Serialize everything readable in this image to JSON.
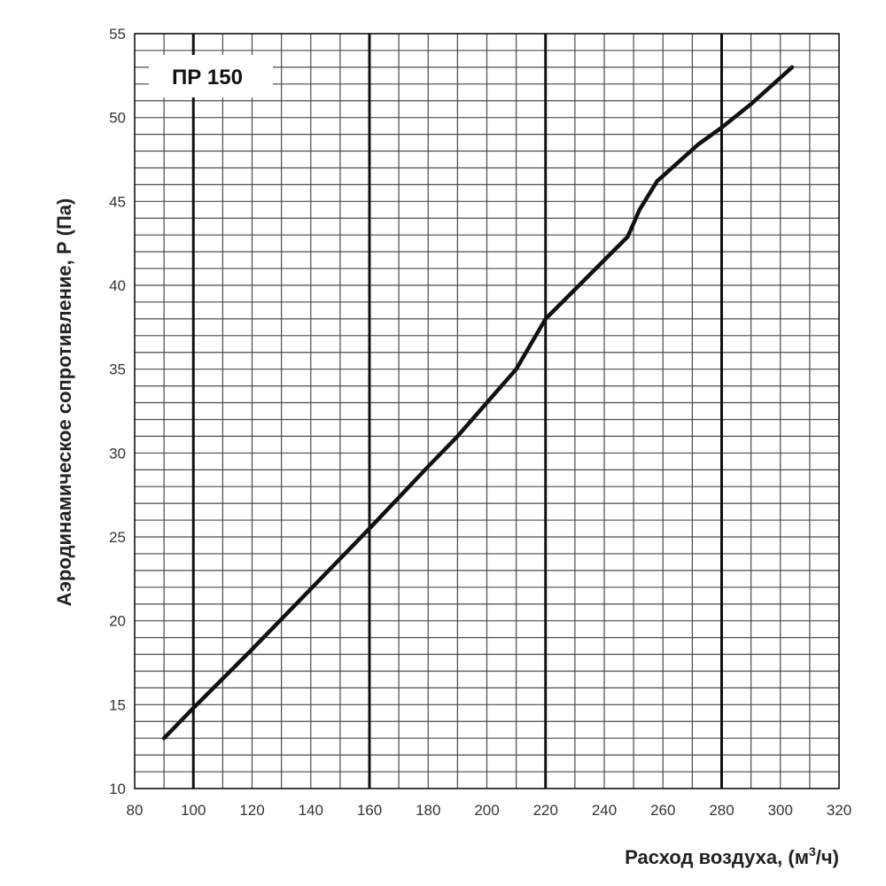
{
  "chart_data": {
    "type": "line",
    "label": "ПР 150",
    "xlabel_main": "Расход воздуха, (м",
    "xlabel_sup": "3",
    "xlabel_tail": "/ч)",
    "ylabel": "Аэродинамическое сопротивление, Р (Па)",
    "xlim": [
      80,
      320
    ],
    "ylim": [
      10,
      55
    ],
    "x_ticks": [
      80,
      100,
      120,
      140,
      160,
      180,
      200,
      220,
      240,
      260,
      280,
      300,
      320
    ],
    "y_ticks": [
      10,
      15,
      20,
      25,
      30,
      35,
      40,
      45,
      50,
      55
    ],
    "x_major_lines": [
      100,
      160,
      220,
      280
    ],
    "x_minor_step": 10,
    "y_minor_step": 1,
    "grid": true,
    "line_color": "#111111",
    "series": [
      {
        "x": [
          90,
          100,
          120,
          140,
          160,
          180,
          190,
          200,
          210,
          215,
          220,
          228,
          240,
          248,
          252,
          258,
          265,
          272,
          280,
          290,
          304
        ],
        "y": [
          13,
          14.8,
          18.3,
          21.9,
          25.5,
          29.2,
          31.0,
          33.0,
          35.0,
          36.5,
          38.0,
          39.4,
          41.5,
          42.9,
          44.5,
          46.2,
          47.3,
          48.4,
          49.4,
          50.8,
          53.0
        ]
      }
    ]
  }
}
